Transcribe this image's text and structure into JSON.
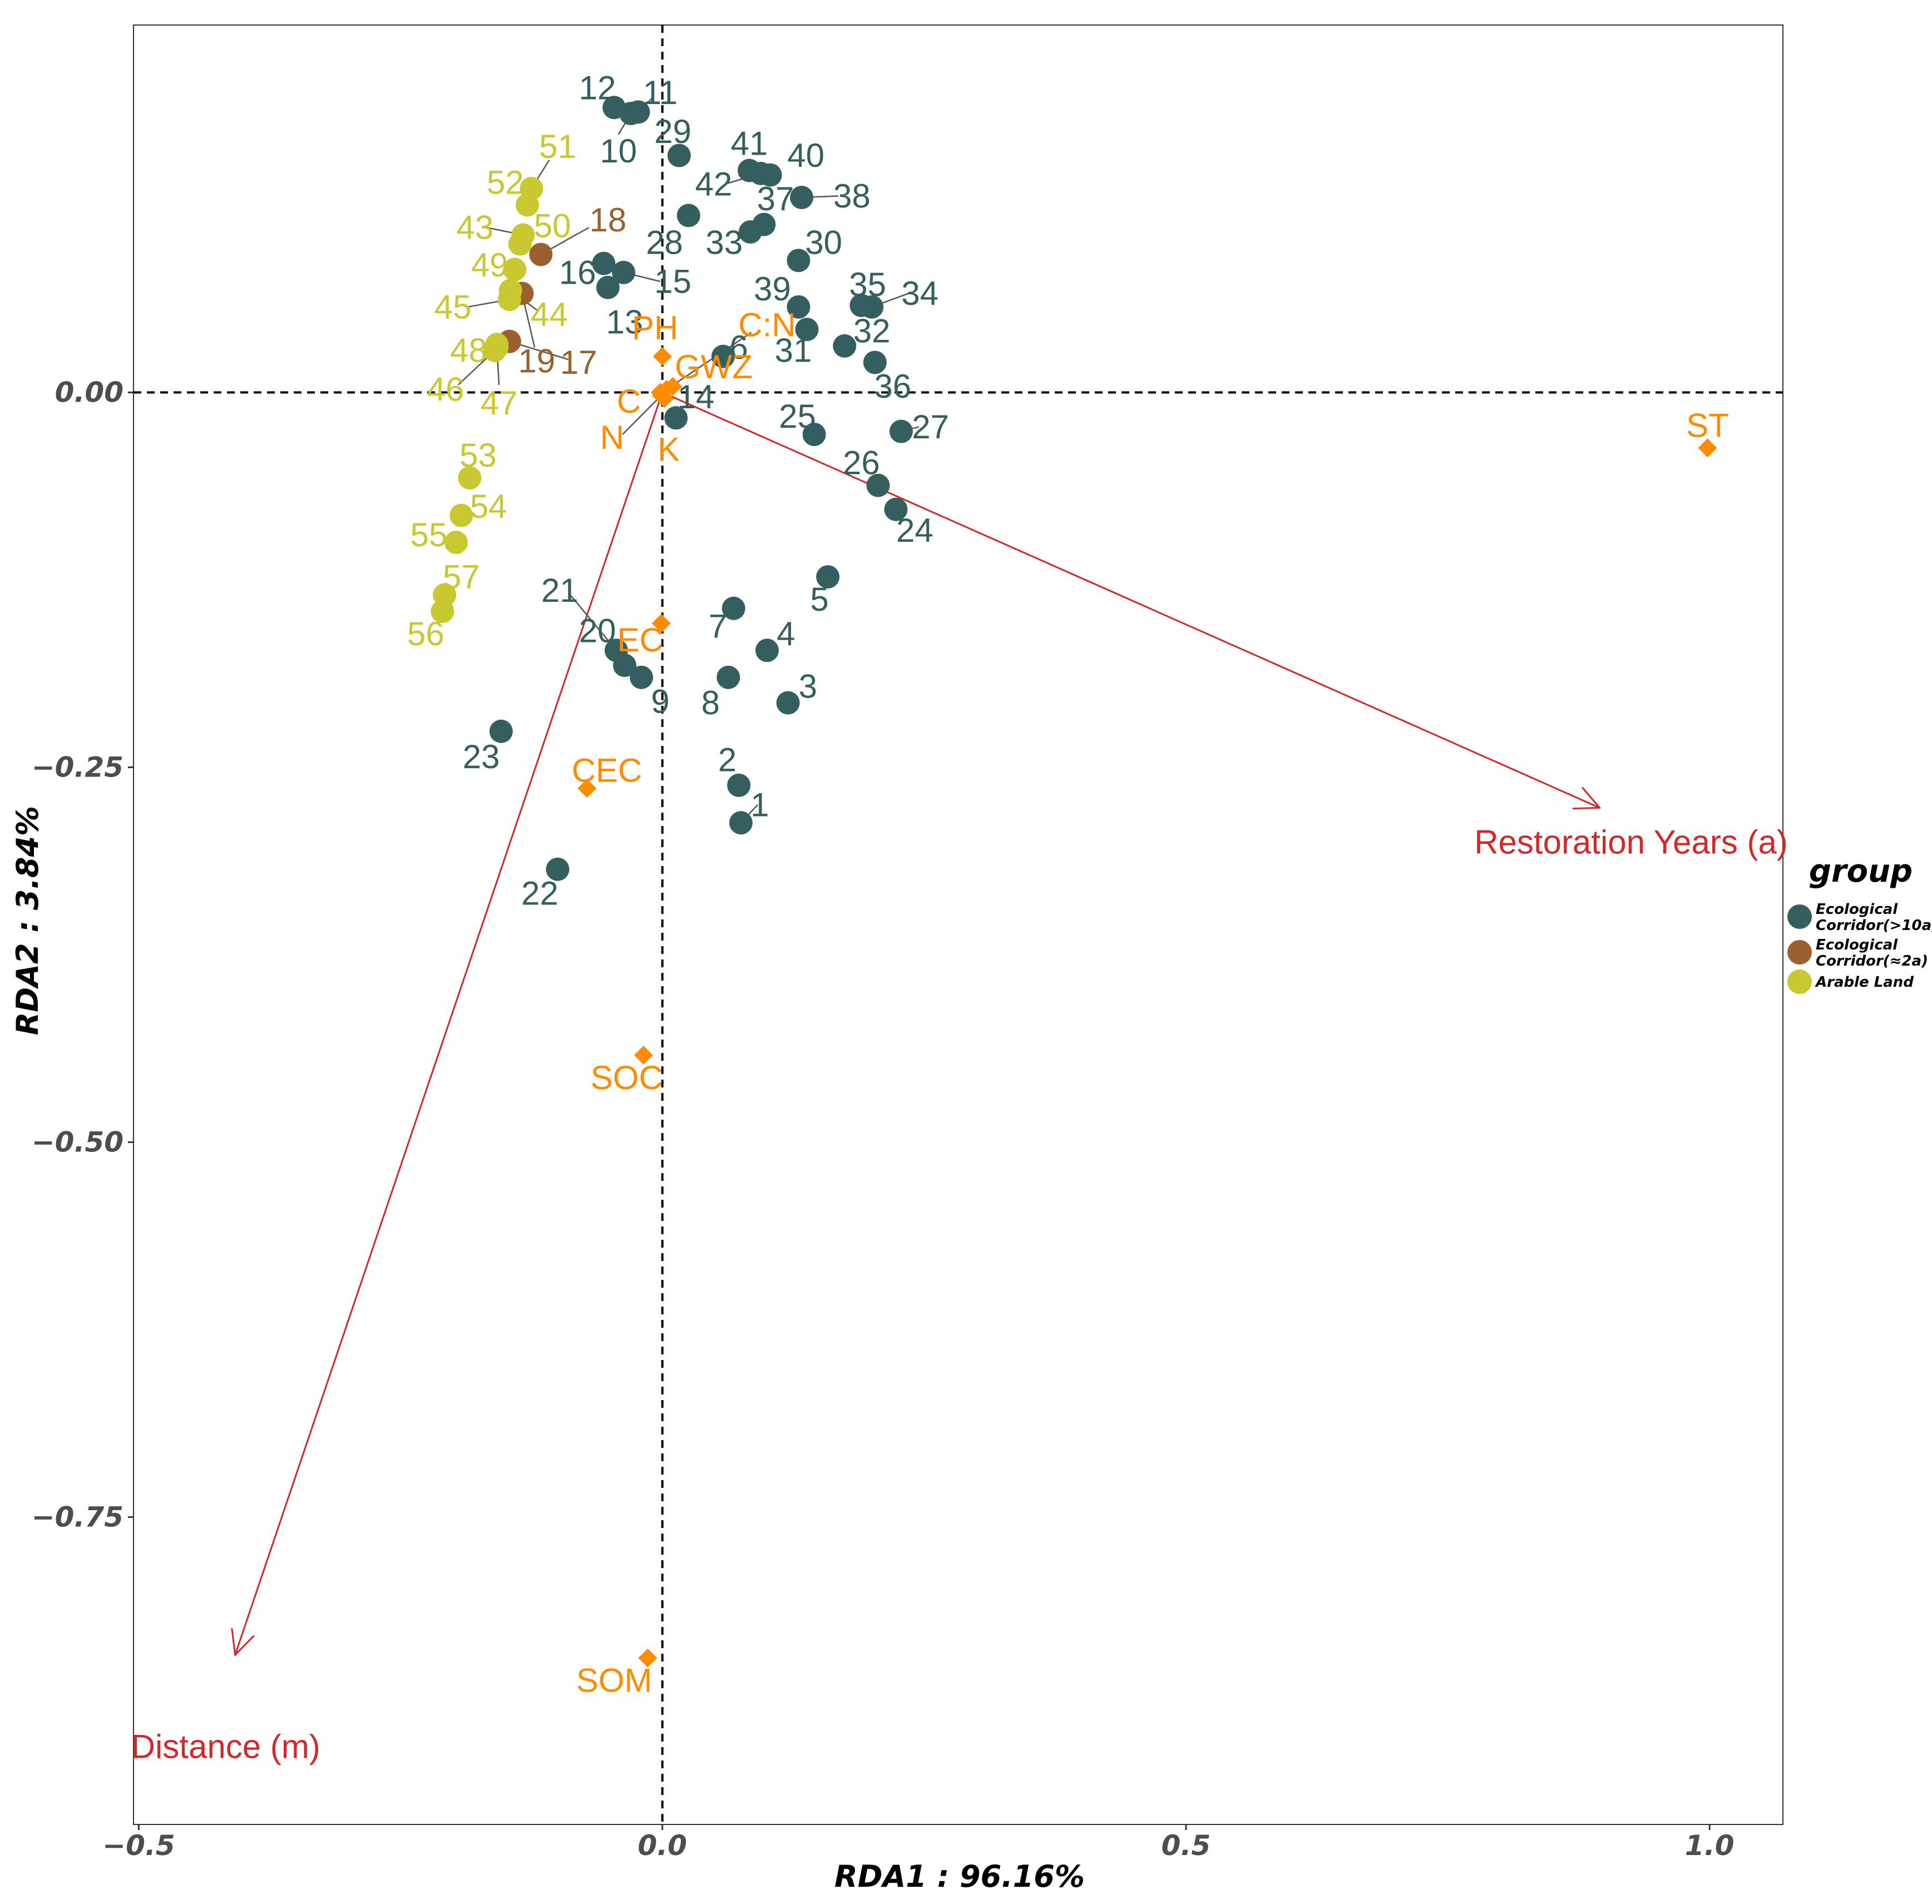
{
  "chart_data": {
    "type": "scatter",
    "xlabel": "RDA1 : 96.16%",
    "ylabel": "RDA2 : 3.84%",
    "xlim": [
      -0.505,
      1.07
    ],
    "ylim": [
      -0.955,
      0.245
    ],
    "x_ticks": [
      {
        "value": -0.5,
        "label": "−0.5"
      },
      {
        "value": 0.0,
        "label": "0.0"
      },
      {
        "value": 0.5,
        "label": "0.5"
      },
      {
        "value": 1.0,
        "label": "1.0"
      }
    ],
    "y_ticks": [
      {
        "value": 0.0,
        "label": "0.00"
      },
      {
        "value": -0.25,
        "label": "−0.25"
      },
      {
        "value": -0.5,
        "label": "−0.50"
      },
      {
        "value": -0.75,
        "label": "−0.75"
      }
    ],
    "reference_lines": {
      "x": 0.0,
      "y": 0.0
    },
    "legend": {
      "title": "group",
      "position": "right",
      "entries": [
        {
          "group": "eco10",
          "lines": [
            "Ecological",
            "Corridor(>10a)"
          ],
          "color": "#355f5e"
        },
        {
          "group": "eco2",
          "lines": [
            "Ecological",
            "Corridor(≈2a)"
          ],
          "color": "#9a6030"
        },
        {
          "group": "arable",
          "lines": [
            "Arable Land"
          ],
          "color": "#c8c830"
        }
      ]
    },
    "colors": {
      "eco10": "#355f5e",
      "eco2": "#9a6030",
      "arable": "#c8c830",
      "env": "#ff8c00",
      "arrow": "#d62728"
    },
    "samples": [
      {
        "id": "1",
        "x": 0.075,
        "y": -0.287,
        "group": "eco10",
        "lx": 0.093,
        "ly": -0.275
      },
      {
        "id": "2",
        "x": 0.073,
        "y": -0.262,
        "group": "eco10",
        "lx": 0.062,
        "ly": -0.245
      },
      {
        "id": "3",
        "x": 0.12,
        "y": -0.207,
        "group": "eco10",
        "lx": 0.139,
        "ly": -0.196
      },
      {
        "id": "4",
        "x": 0.1,
        "y": -0.172,
        "group": "eco10",
        "lx": 0.118,
        "ly": -0.161
      },
      {
        "id": "5",
        "x": 0.158,
        "y": -0.123,
        "group": "eco10",
        "lx": 0.15,
        "ly": -0.138
      },
      {
        "id": "6",
        "x": 0.058,
        "y": 0.024,
        "group": "eco10",
        "lx": 0.073,
        "ly": 0.03
      },
      {
        "id": "7",
        "x": 0.068,
        "y": -0.144,
        "group": "eco10",
        "lx": 0.053,
        "ly": -0.156
      },
      {
        "id": "8",
        "x": 0.063,
        "y": -0.19,
        "group": "eco10",
        "lx": 0.046,
        "ly": -0.207
      },
      {
        "id": "9",
        "x": -0.02,
        "y": -0.19,
        "group": "eco10",
        "lx": -0.002,
        "ly": -0.206
      },
      {
        "id": "10",
        "x": -0.03,
        "y": 0.186,
        "group": "eco10",
        "lx": -0.042,
        "ly": 0.161
      },
      {
        "id": "11",
        "x": -0.023,
        "y": 0.187,
        "group": "eco10",
        "lx": -0.002,
        "ly": 0.2
      },
      {
        "id": "12",
        "x": -0.046,
        "y": 0.19,
        "group": "eco10",
        "lx": -0.062,
        "ly": 0.203
      },
      {
        "id": "13",
        "x": -0.052,
        "y": 0.07,
        "group": "eco10",
        "lx": -0.036,
        "ly": 0.047
      },
      {
        "id": "14",
        "x": 0.013,
        "y": -0.017,
        "group": "eco10",
        "lx": 0.032,
        "ly": -0.003
      },
      {
        "id": "15",
        "x": -0.037,
        "y": 0.08,
        "group": "eco10",
        "lx": 0.01,
        "ly": 0.074
      },
      {
        "id": "16",
        "x": -0.056,
        "y": 0.086,
        "group": "eco10",
        "lx": -0.081,
        "ly": 0.08
      },
      {
        "id": "17",
        "x": -0.146,
        "y": 0.034,
        "group": "eco2",
        "lx": -0.08,
        "ly": 0.02
      },
      {
        "id": "18",
        "x": -0.116,
        "y": 0.092,
        "group": "eco2",
        "lx": -0.052,
        "ly": 0.115
      },
      {
        "id": "19",
        "x": -0.134,
        "y": 0.066,
        "group": "eco2",
        "lx": -0.12,
        "ly": 0.021
      },
      {
        "id": "20",
        "x": -0.036,
        "y": -0.182,
        "group": "eco10",
        "lx": -0.062,
        "ly": -0.159
      },
      {
        "id": "21",
        "x": -0.044,
        "y": -0.172,
        "group": "eco10",
        "lx": -0.098,
        "ly": -0.132
      },
      {
        "id": "22",
        "x": -0.1,
        "y": -0.318,
        "group": "eco10",
        "lx": -0.117,
        "ly": -0.334
      },
      {
        "id": "23",
        "x": -0.154,
        "y": -0.226,
        "group": "eco10",
        "lx": -0.173,
        "ly": -0.243
      },
      {
        "id": "24",
        "x": 0.223,
        "y": -0.078,
        "group": "eco10",
        "lx": 0.241,
        "ly": -0.092
      },
      {
        "id": "25",
        "x": 0.145,
        "y": -0.028,
        "group": "eco10",
        "lx": 0.129,
        "ly": -0.016
      },
      {
        "id": "26",
        "x": 0.206,
        "y": -0.062,
        "group": "eco10",
        "lx": 0.19,
        "ly": -0.047
      },
      {
        "id": "27",
        "x": 0.228,
        "y": -0.026,
        "group": "eco10",
        "lx": 0.256,
        "ly": -0.023
      },
      {
        "id": "28",
        "x": 0.025,
        "y": 0.118,
        "group": "eco10",
        "lx": 0.002,
        "ly": 0.1
      },
      {
        "id": "29",
        "x": 0.016,
        "y": 0.158,
        "group": "eco10",
        "lx": 0.01,
        "ly": 0.174
      },
      {
        "id": "30",
        "x": 0.13,
        "y": 0.088,
        "group": "eco10",
        "lx": 0.154,
        "ly": 0.1
      },
      {
        "id": "31",
        "x": 0.138,
        "y": 0.042,
        "group": "eco10",
        "lx": 0.125,
        "ly": 0.028
      },
      {
        "id": "32",
        "x": 0.174,
        "y": 0.031,
        "group": "eco10",
        "lx": 0.2,
        "ly": 0.041
      },
      {
        "id": "33",
        "x": 0.084,
        "y": 0.107,
        "group": "eco10",
        "lx": 0.059,
        "ly": 0.1
      },
      {
        "id": "34",
        "x": 0.2,
        "y": 0.057,
        "group": "eco10",
        "lx": 0.246,
        "ly": 0.066
      },
      {
        "id": "35",
        "x": 0.19,
        "y": 0.058,
        "group": "eco10",
        "lx": 0.196,
        "ly": 0.072
      },
      {
        "id": "36",
        "x": 0.203,
        "y": 0.02,
        "group": "eco10",
        "lx": 0.22,
        "ly": 0.004
      },
      {
        "id": "37",
        "x": 0.097,
        "y": 0.112,
        "group": "eco10",
        "lx": 0.108,
        "ly": 0.129
      },
      {
        "id": "38",
        "x": 0.133,
        "y": 0.13,
        "group": "eco10",
        "lx": 0.181,
        "ly": 0.131
      },
      {
        "id": "39",
        "x": 0.13,
        "y": 0.057,
        "group": "eco10",
        "lx": 0.105,
        "ly": 0.069
      },
      {
        "id": "40",
        "x": 0.103,
        "y": 0.145,
        "group": "eco10",
        "lx": 0.137,
        "ly": 0.158
      },
      {
        "id": "41",
        "x": 0.083,
        "y": 0.148,
        "group": "eco10",
        "lx": 0.083,
        "ly": 0.166
      },
      {
        "id": "42",
        "x": 0.094,
        "y": 0.146,
        "group": "eco10",
        "lx": 0.049,
        "ly": 0.139
      },
      {
        "id": "43",
        "x": -0.133,
        "y": 0.105,
        "group": "arable",
        "lx": -0.179,
        "ly": 0.11
      },
      {
        "id": "44",
        "x": -0.145,
        "y": 0.068,
        "group": "arable",
        "lx": -0.108,
        "ly": 0.052
      },
      {
        "id": "45",
        "x": -0.146,
        "y": 0.062,
        "group": "arable",
        "lx": -0.2,
        "ly": 0.057
      },
      {
        "id": "46",
        "x": -0.16,
        "y": 0.028,
        "group": "arable",
        "lx": -0.207,
        "ly": 0.002
      },
      {
        "id": "47",
        "x": -0.158,
        "y": 0.03,
        "group": "arable",
        "lx": -0.156,
        "ly": -0.007
      },
      {
        "id": "48",
        "x": -0.158,
        "y": 0.032,
        "group": "arable",
        "lx": -0.185,
        "ly": 0.028
      },
      {
        "id": "49",
        "x": -0.141,
        "y": 0.082,
        "group": "arable",
        "lx": -0.165,
        "ly": 0.085
      },
      {
        "id": "50",
        "x": -0.136,
        "y": 0.099,
        "group": "arable",
        "lx": -0.105,
        "ly": 0.111
      },
      {
        "id": "51",
        "x": -0.125,
        "y": 0.136,
        "group": "arable",
        "lx": -0.1,
        "ly": 0.164
      },
      {
        "id": "52",
        "x": -0.129,
        "y": 0.125,
        "group": "arable",
        "lx": -0.15,
        "ly": 0.14
      },
      {
        "id": "53",
        "x": -0.184,
        "y": -0.057,
        "group": "arable",
        "lx": -0.176,
        "ly": -0.042
      },
      {
        "id": "54",
        "x": -0.192,
        "y": -0.082,
        "group": "arable",
        "lx": -0.166,
        "ly": -0.076
      },
      {
        "id": "55",
        "x": -0.197,
        "y": -0.1,
        "group": "arable",
        "lx": -0.223,
        "ly": -0.095
      },
      {
        "id": "56",
        "x": -0.21,
        "y": -0.146,
        "group": "arable",
        "lx": -0.226,
        "ly": -0.161
      },
      {
        "id": "57",
        "x": -0.208,
        "y": -0.135,
        "group": "arable",
        "lx": -0.192,
        "ly": -0.123
      }
    ],
    "environment": [
      {
        "id": "PH",
        "x": 0.0,
        "y": 0.024,
        "lx": -0.007,
        "ly": 0.043
      },
      {
        "id": "C:N",
        "x": 0.004,
        "y": 0.002,
        "lx": 0.1,
        "ly": 0.045
      },
      {
        "id": "GWZ",
        "x": 0.01,
        "y": 0.004,
        "lx": 0.049,
        "ly": 0.017
      },
      {
        "id": "C",
        "x": -0.002,
        "y": 0.0,
        "lx": -0.032,
        "ly": -0.006
      },
      {
        "id": "N",
        "x": -0.001,
        "y": -0.002,
        "lx": -0.048,
        "ly": -0.03
      },
      {
        "id": "K",
        "x": 0.002,
        "y": -0.004,
        "lx": 0.006,
        "ly": -0.038
      },
      {
        "id": "EC",
        "x": -0.001,
        "y": -0.154,
        "lx": -0.021,
        "ly": -0.165
      },
      {
        "id": "CEC",
        "x": -0.072,
        "y": -0.264,
        "lx": -0.053,
        "ly": -0.252
      },
      {
        "id": "SOC",
        "x": -0.018,
        "y": -0.442,
        "lx": -0.034,
        "ly": -0.457
      },
      {
        "id": "SOM",
        "x": -0.014,
        "y": -0.844,
        "lx": -0.046,
        "ly": -0.859
      },
      {
        "id": "ST",
        "x": 0.998,
        "y": -0.037,
        "lx": 0.998,
        "ly": -0.022
      }
    ],
    "arrows": [
      {
        "name": "Restoration Years (a)",
        "x": 0.895,
        "y": -0.277,
        "lx": 0.925,
        "ly": -0.3
      },
      {
        "name": "Distance (m)",
        "x": -0.408,
        "y": -0.842,
        "lx": -0.417,
        "ly": -0.903
      }
    ],
    "segments": [
      {
        "x1": 0.075,
        "y1": -0.287,
        "x2": 0.091,
        "y2": -0.275
      },
      {
        "x1": -0.03,
        "y1": 0.186,
        "x2": -0.042,
        "y2": 0.172
      },
      {
        "x1": -0.023,
        "y1": 0.187,
        "x2": -0.01,
        "y2": 0.196
      },
      {
        "x1": -0.037,
        "y1": 0.08,
        "x2": -0.002,
        "y2": 0.074
      },
      {
        "x1": -0.146,
        "y1": 0.034,
        "x2": -0.09,
        "y2": 0.022
      },
      {
        "x1": -0.116,
        "y1": 0.092,
        "x2": -0.07,
        "y2": 0.11
      },
      {
        "x1": -0.134,
        "y1": 0.066,
        "x2": -0.122,
        "y2": 0.03
      },
      {
        "x1": -0.044,
        "y1": -0.172,
        "x2": -0.088,
        "y2": -0.135
      },
      {
        "x1": 0.2,
        "y1": 0.057,
        "x2": 0.235,
        "y2": 0.066
      },
      {
        "x1": 0.228,
        "y1": -0.026,
        "x2": 0.245,
        "y2": -0.023
      },
      {
        "x1": 0.133,
        "y1": 0.13,
        "x2": 0.168,
        "y2": 0.131
      },
      {
        "x1": 0.094,
        "y1": 0.146,
        "x2": 0.06,
        "y2": 0.139
      },
      {
        "x1": -0.133,
        "y1": 0.105,
        "x2": -0.168,
        "y2": 0.11
      },
      {
        "x1": -0.145,
        "y1": 0.068,
        "x2": -0.118,
        "y2": 0.054
      },
      {
        "x1": -0.146,
        "y1": 0.062,
        "x2": -0.186,
        "y2": 0.057
      },
      {
        "x1": -0.16,
        "y1": 0.028,
        "x2": -0.195,
        "y2": 0.005
      },
      {
        "x1": -0.158,
        "y1": 0.03,
        "x2": -0.156,
        "y2": 0.005
      },
      {
        "x1": -0.125,
        "y1": 0.136,
        "x2": -0.108,
        "y2": 0.155
      },
      {
        "x1": 0.004,
        "y1": 0.002,
        "x2": 0.085,
        "y2": 0.04
      },
      {
        "x1": -0.001,
        "y1": -0.002,
        "x2": -0.038,
        "y2": -0.028
      }
    ]
  }
}
